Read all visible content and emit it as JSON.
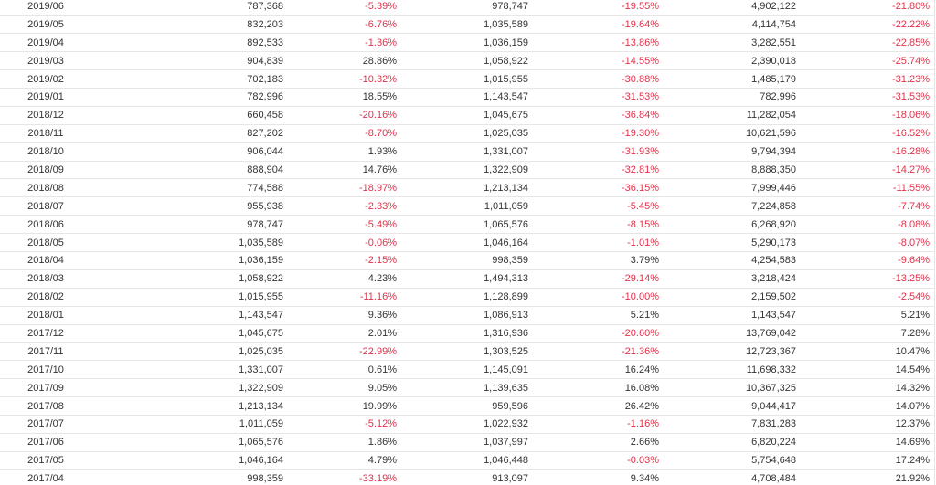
{
  "colors": {
    "negative": "#e0324b",
    "positive": "#333333",
    "border": "#e6e6e6"
  },
  "rows": [
    {
      "date": "2019/06",
      "v1": "787,368",
      "p1": "-5.39%",
      "v2": "978,747",
      "p2": "-19.55%",
      "v3": "4,902,122",
      "p3": "-21.80%"
    },
    {
      "date": "2019/05",
      "v1": "832,203",
      "p1": "-6.76%",
      "v2": "1,035,589",
      "p2": "-19.64%",
      "v3": "4,114,754",
      "p3": "-22.22%"
    },
    {
      "date": "2019/04",
      "v1": "892,533",
      "p1": "-1.36%",
      "v2": "1,036,159",
      "p2": "-13.86%",
      "v3": "3,282,551",
      "p3": "-22.85%"
    },
    {
      "date": "2019/03",
      "v1": "904,839",
      "p1": "28.86%",
      "v2": "1,058,922",
      "p2": "-14.55%",
      "v3": "2,390,018",
      "p3": "-25.74%"
    },
    {
      "date": "2019/02",
      "v1": "702,183",
      "p1": "-10.32%",
      "v2": "1,015,955",
      "p2": "-30.88%",
      "v3": "1,485,179",
      "p3": "-31.23%"
    },
    {
      "date": "2019/01",
      "v1": "782,996",
      "p1": "18.55%",
      "v2": "1,143,547",
      "p2": "-31.53%",
      "v3": "782,996",
      "p3": "-31.53%"
    },
    {
      "date": "2018/12",
      "v1": "660,458",
      "p1": "-20.16%",
      "v2": "1,045,675",
      "p2": "-36.84%",
      "v3": "11,282,054",
      "p3": "-18.06%"
    },
    {
      "date": "2018/11",
      "v1": "827,202",
      "p1": "-8.70%",
      "v2": "1,025,035",
      "p2": "-19.30%",
      "v3": "10,621,596",
      "p3": "-16.52%"
    },
    {
      "date": "2018/10",
      "v1": "906,044",
      "p1": "1.93%",
      "v2": "1,331,007",
      "p2": "-31.93%",
      "v3": "9,794,394",
      "p3": "-16.28%"
    },
    {
      "date": "2018/09",
      "v1": "888,904",
      "p1": "14.76%",
      "v2": "1,322,909",
      "p2": "-32.81%",
      "v3": "8,888,350",
      "p3": "-14.27%"
    },
    {
      "date": "2018/08",
      "v1": "774,588",
      "p1": "-18.97%",
      "v2": "1,213,134",
      "p2": "-36.15%",
      "v3": "7,999,446",
      "p3": "-11.55%"
    },
    {
      "date": "2018/07",
      "v1": "955,938",
      "p1": "-2.33%",
      "v2": "1,011,059",
      "p2": "-5.45%",
      "v3": "7,224,858",
      "p3": "-7.74%"
    },
    {
      "date": "2018/06",
      "v1": "978,747",
      "p1": "-5.49%",
      "v2": "1,065,576",
      "p2": "-8.15%",
      "v3": "6,268,920",
      "p3": "-8.08%"
    },
    {
      "date": "2018/05",
      "v1": "1,035,589",
      "p1": "-0.06%",
      "v2": "1,046,164",
      "p2": "-1.01%",
      "v3": "5,290,173",
      "p3": "-8.07%"
    },
    {
      "date": "2018/04",
      "v1": "1,036,159",
      "p1": "-2.15%",
      "v2": "998,359",
      "p2": "3.79%",
      "v3": "4,254,583",
      "p3": "-9.64%"
    },
    {
      "date": "2018/03",
      "v1": "1,058,922",
      "p1": "4.23%",
      "v2": "1,494,313",
      "p2": "-29.14%",
      "v3": "3,218,424",
      "p3": "-13.25%"
    },
    {
      "date": "2018/02",
      "v1": "1,015,955",
      "p1": "-11.16%",
      "v2": "1,128,899",
      "p2": "-10.00%",
      "v3": "2,159,502",
      "p3": "-2.54%"
    },
    {
      "date": "2018/01",
      "v1": "1,143,547",
      "p1": "9.36%",
      "v2": "1,086,913",
      "p2": "5.21%",
      "v3": "1,143,547",
      "p3": "5.21%"
    },
    {
      "date": "2017/12",
      "v1": "1,045,675",
      "p1": "2.01%",
      "v2": "1,316,936",
      "p2": "-20.60%",
      "v3": "13,769,042",
      "p3": "7.28%"
    },
    {
      "date": "2017/11",
      "v1": "1,025,035",
      "p1": "-22.99%",
      "v2": "1,303,525",
      "p2": "-21.36%",
      "v3": "12,723,367",
      "p3": "10.47%"
    },
    {
      "date": "2017/10",
      "v1": "1,331,007",
      "p1": "0.61%",
      "v2": "1,145,091",
      "p2": "16.24%",
      "v3": "11,698,332",
      "p3": "14.54%"
    },
    {
      "date": "2017/09",
      "v1": "1,322,909",
      "p1": "9.05%",
      "v2": "1,139,635",
      "p2": "16.08%",
      "v3": "10,367,325",
      "p3": "14.32%"
    },
    {
      "date": "2017/08",
      "v1": "1,213,134",
      "p1": "19.99%",
      "v2": "959,596",
      "p2": "26.42%",
      "v3": "9,044,417",
      "p3": "14.07%"
    },
    {
      "date": "2017/07",
      "v1": "1,011,059",
      "p1": "-5.12%",
      "v2": "1,022,932",
      "p2": "-1.16%",
      "v3": "7,831,283",
      "p3": "12.37%"
    },
    {
      "date": "2017/06",
      "v1": "1,065,576",
      "p1": "1.86%",
      "v2": "1,037,997",
      "p2": "2.66%",
      "v3": "6,820,224",
      "p3": "14.69%"
    },
    {
      "date": "2017/05",
      "v1": "1,046,164",
      "p1": "4.79%",
      "v2": "1,046,448",
      "p2": "-0.03%",
      "v3": "5,754,648",
      "p3": "17.24%"
    },
    {
      "date": "2017/04",
      "v1": "998,359",
      "p1": "-33.19%",
      "v2": "913,097",
      "p2": "9.34%",
      "v3": "4,708,484",
      "p3": "21.92%"
    }
  ]
}
